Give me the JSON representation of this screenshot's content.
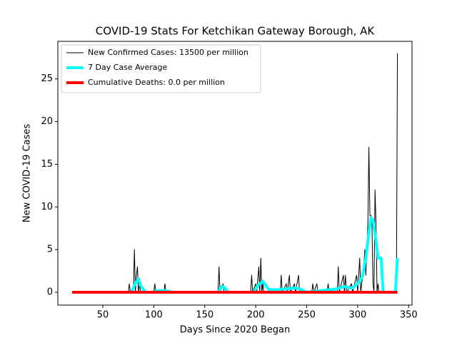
{
  "chart_data": {
    "type": "line",
    "title": "COVID-19 Stats For Ketchikan Gateway Borough, AK",
    "x_label": "Days Since 2020 Began",
    "y_label": "New COVID-19 Cases",
    "xlim": [
      5.9,
      353.3
    ],
    "ylim": [
      -1.5,
      29.4
    ],
    "xticks": [
      50,
      100,
      150,
      200,
      250,
      300,
      350
    ],
    "yticks": [
      0,
      5,
      10,
      15,
      20,
      25
    ],
    "legend": "upper left",
    "series": [
      {
        "name": "New Confirmed Cases: 13500 per million",
        "color": "#000000",
        "width": 1,
        "x": [
          20,
          75,
          76,
          77,
          80,
          81,
          82,
          83,
          84,
          85,
          86,
          87,
          100,
          101,
          102,
          110,
          111,
          112,
          163,
          164,
          165,
          168,
          169,
          195,
          196,
          197,
          200,
          201,
          203,
          204,
          205,
          206,
          207,
          208,
          224,
          225,
          226,
          230,
          231,
          233,
          234,
          238,
          239,
          242,
          243,
          255,
          256,
          257,
          260,
          261,
          270,
          271,
          272,
          280,
          281,
          282,
          286,
          287,
          288,
          289,
          294,
          295,
          299,
          300,
          302,
          303,
          306,
          307,
          308,
          310,
          311,
          312,
          313,
          314,
          315,
          316,
          317,
          318,
          319,
          320,
          321,
          330,
          338,
          339
        ],
        "values": [
          0,
          0,
          1,
          0,
          0,
          5,
          0,
          2,
          3,
          0,
          1,
          0,
          0,
          1,
          0,
          0,
          1,
          0,
          0,
          3,
          0,
          1,
          0,
          0,
          2,
          0,
          1,
          0,
          3,
          0,
          4,
          0,
          1,
          0,
          0,
          2,
          0,
          1,
          0,
          2,
          0,
          1,
          0,
          2,
          0,
          0,
          1,
          0,
          1,
          0,
          0,
          1,
          0,
          0,
          3,
          0,
          2,
          0,
          2,
          0,
          1,
          0,
          2,
          0,
          4,
          0,
          3,
          5,
          2,
          8,
          17,
          9,
          9,
          8,
          1,
          0,
          12,
          8,
          0,
          1,
          0,
          0,
          0,
          28
        ]
      },
      {
        "name": "7 Day Case Average",
        "color": "#00ffff",
        "width": 4,
        "x": [
          20,
          78,
          81,
          83,
          85,
          87,
          90,
          92,
          100,
          104,
          110,
          115,
          118,
          163,
          167,
          170,
          173,
          198,
          202,
          205,
          207,
          210,
          213,
          220,
          230,
          240,
          245,
          250,
          280,
          285,
          288,
          292,
          295,
          300,
          303,
          305,
          308,
          311,
          313,
          315,
          318,
          320,
          323,
          325,
          337,
          339
        ],
        "values": [
          0,
          0,
          0.8,
          1.2,
          1.6,
          0.8,
          0.3,
          0,
          0,
          0.2,
          0.2,
          0.1,
          0,
          0,
          0.7,
          0.5,
          0,
          0,
          0.8,
          1.1,
          1.3,
          0.8,
          0.3,
          0.3,
          0.4,
          0.5,
          0.3,
          0,
          0.4,
          0.6,
          0.7,
          0.5,
          0.5,
          1,
          1.5,
          2,
          4,
          7,
          8.7,
          8.5,
          6,
          4,
          4,
          0,
          0,
          4
        ]
      },
      {
        "name": "Cumulative Deaths: 0.0 per million",
        "color": "#ff0000",
        "width": 4,
        "x": [
          20,
          339
        ],
        "values": [
          0,
          0
        ]
      }
    ]
  }
}
